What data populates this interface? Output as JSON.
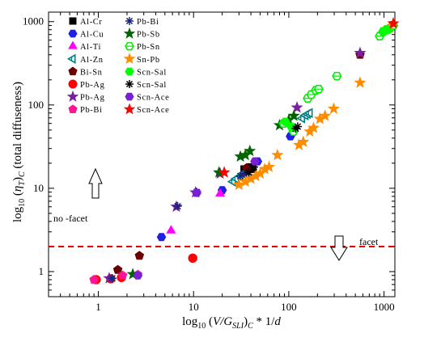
{
  "chart_data": {
    "type": "scatter",
    "x_scale": "log",
    "y_scale": "log",
    "xlim": [
      0.3,
      1300
    ],
    "ylim": [
      0.5,
      1300
    ],
    "x_ticks": [
      1,
      10,
      100,
      1000
    ],
    "x_tick_labels": [
      "1",
      "10",
      "100",
      "1000"
    ],
    "y_ticks": [
      1,
      10,
      100,
      1000
    ],
    "y_tick_labels": [
      "1",
      "10",
      "100",
      "1000"
    ],
    "ylabel": "log10 (ηT)C (total diffuseness)",
    "xlabel": "log10 (V/GSLI)C * 1/d",
    "threshold": {
      "y": 2,
      "style": "dashed",
      "color": "#cc0000"
    },
    "annotations": [
      {
        "text": "no  -facet",
        "arrow": "up"
      },
      {
        "text": "facet",
        "arrow": "down"
      }
    ],
    "legend_position": "top-left",
    "series": [
      {
        "name": "Al-Cr",
        "marker": "square",
        "color": "#000000",
        "points": [
          [
            34,
            17
          ],
          [
            36,
            16
          ],
          [
            38,
            17
          ],
          [
            40,
            18
          ],
          [
            42,
            17
          ]
        ]
      },
      {
        "name": "Al-Cu",
        "marker": "hexagon",
        "color": "#1f1fe6",
        "points": [
          [
            4.6,
            2.6
          ],
          [
            20,
            9.5
          ],
          [
            47,
            21
          ],
          [
            104,
            42
          ],
          [
            112,
            49
          ]
        ]
      },
      {
        "name": "Al-Ti",
        "marker": "triangle-up",
        "color": "#ff00ff",
        "points": [
          [
            5.8,
            3.1
          ],
          [
            19,
            8.6
          ]
        ]
      },
      {
        "name": "Al-Zn",
        "marker": "triangle-left",
        "color": "#008080",
        "points": [
          [
            26,
            12
          ],
          [
            28,
            13
          ],
          [
            31,
            14
          ],
          [
            33,
            15
          ],
          [
            138,
            69
          ],
          [
            150,
            75
          ],
          [
            158,
            78
          ],
          [
            166,
            80
          ]
        ]
      },
      {
        "name": "Bi-Sn",
        "marker": "pentagon",
        "color": "#6b0000",
        "points": [
          [
            1.6,
            1.05
          ],
          [
            2.7,
            1.55
          ],
          [
            36,
            17.5
          ],
          [
            560,
            400
          ]
        ]
      },
      {
        "name": "Pb-Ag",
        "marker": "circle",
        "color": "#ff0000",
        "points": [
          [
            0.95,
            0.8
          ],
          [
            1.35,
            0.82
          ],
          [
            1.75,
            0.85
          ],
          [
            9.8,
            1.45
          ]
        ]
      },
      {
        "name": "Pb-Ag",
        "marker": "star",
        "color": "#7b1fa2",
        "points": [
          [
            1.3,
            0.83
          ],
          [
            6.6,
            6.0
          ],
          [
            10.5,
            8.9
          ],
          [
            19,
            15
          ],
          [
            122,
            93
          ],
          [
            560,
            420
          ]
        ]
      },
      {
        "name": "Pb-Bi",
        "marker": "pentagon",
        "color": "#ff1493",
        "points": [
          [
            0.9,
            0.8
          ],
          [
            1.8,
            0.9
          ],
          [
            2.6,
            0.92
          ]
        ]
      },
      {
        "name": "Pb-Bi",
        "marker": "asterisk",
        "color": "#1a237e",
        "points": [
          [
            1.4,
            0.83
          ],
          [
            6.8,
            6.1
          ],
          [
            10.8,
            9.0
          ],
          [
            31,
            14
          ],
          [
            34,
            15
          ]
        ]
      },
      {
        "name": "Pb-Sb",
        "marker": "star",
        "color": "#006400",
        "points": [
          [
            2.3,
            0.93
          ],
          [
            18.5,
            15.5
          ],
          [
            31,
            24
          ],
          [
            35,
            25
          ],
          [
            39,
            28
          ],
          [
            80,
            57
          ],
          [
            100,
            66
          ],
          [
            113,
            74
          ]
        ]
      },
      {
        "name": "Pb-Sn",
        "marker": "hexagon-open",
        "color": "#00ee00",
        "points": [
          [
            88,
            60
          ],
          [
            112,
            48
          ],
          [
            158,
            120
          ],
          [
            172,
            133
          ],
          [
            192,
            150
          ],
          [
            206,
            155
          ],
          [
            320,
            222
          ],
          [
            900,
            670
          ],
          [
            980,
            760
          ],
          [
            1050,
            790
          ],
          [
            1150,
            830
          ],
          [
            1250,
            900
          ]
        ]
      },
      {
        "name": "Sn-Pb",
        "marker": "star",
        "color": "#ff8c00",
        "points": [
          [
            30,
            11
          ],
          [
            35,
            12
          ],
          [
            40,
            13
          ],
          [
            45,
            14
          ],
          [
            50,
            15
          ],
          [
            56,
            17
          ],
          [
            62,
            18
          ],
          [
            76,
            25
          ],
          [
            128,
            33
          ],
          [
            142,
            36
          ],
          [
            166,
            48
          ],
          [
            182,
            53
          ],
          [
            212,
            68
          ],
          [
            240,
            74
          ],
          [
            296,
            90
          ],
          [
            560,
            185
          ],
          [
            1150,
            860
          ]
        ]
      },
      {
        "name": "Scn-Sal",
        "marker": "hexagon",
        "color": "#00ff00",
        "points": [
          [
            92,
            63
          ],
          [
            106,
            55
          ],
          [
            1000,
            770
          ],
          [
            1100,
            800
          ]
        ]
      },
      {
        "name": "Scn-Sal",
        "marker": "asterisk",
        "color": "#000000",
        "points": [
          [
            118,
            52
          ],
          [
            124,
            55
          ],
          [
            38,
            15.5
          ],
          [
            43,
            18
          ]
        ]
      },
      {
        "name": "Scn-Ace",
        "marker": "hexagon",
        "color": "#7a1fd6",
        "points": [
          [
            2.6,
            0.9
          ],
          [
            10.8,
            8.8
          ],
          [
            44,
            21
          ]
        ]
      },
      {
        "name": "Scn-Ace",
        "marker": "star",
        "color": "#ff0000",
        "points": [
          [
            21,
            15.5
          ],
          [
            1250,
            950
          ]
        ]
      }
    ]
  },
  "colors": {
    "threshold_line": "#dd0000",
    "axis": "#000000"
  }
}
